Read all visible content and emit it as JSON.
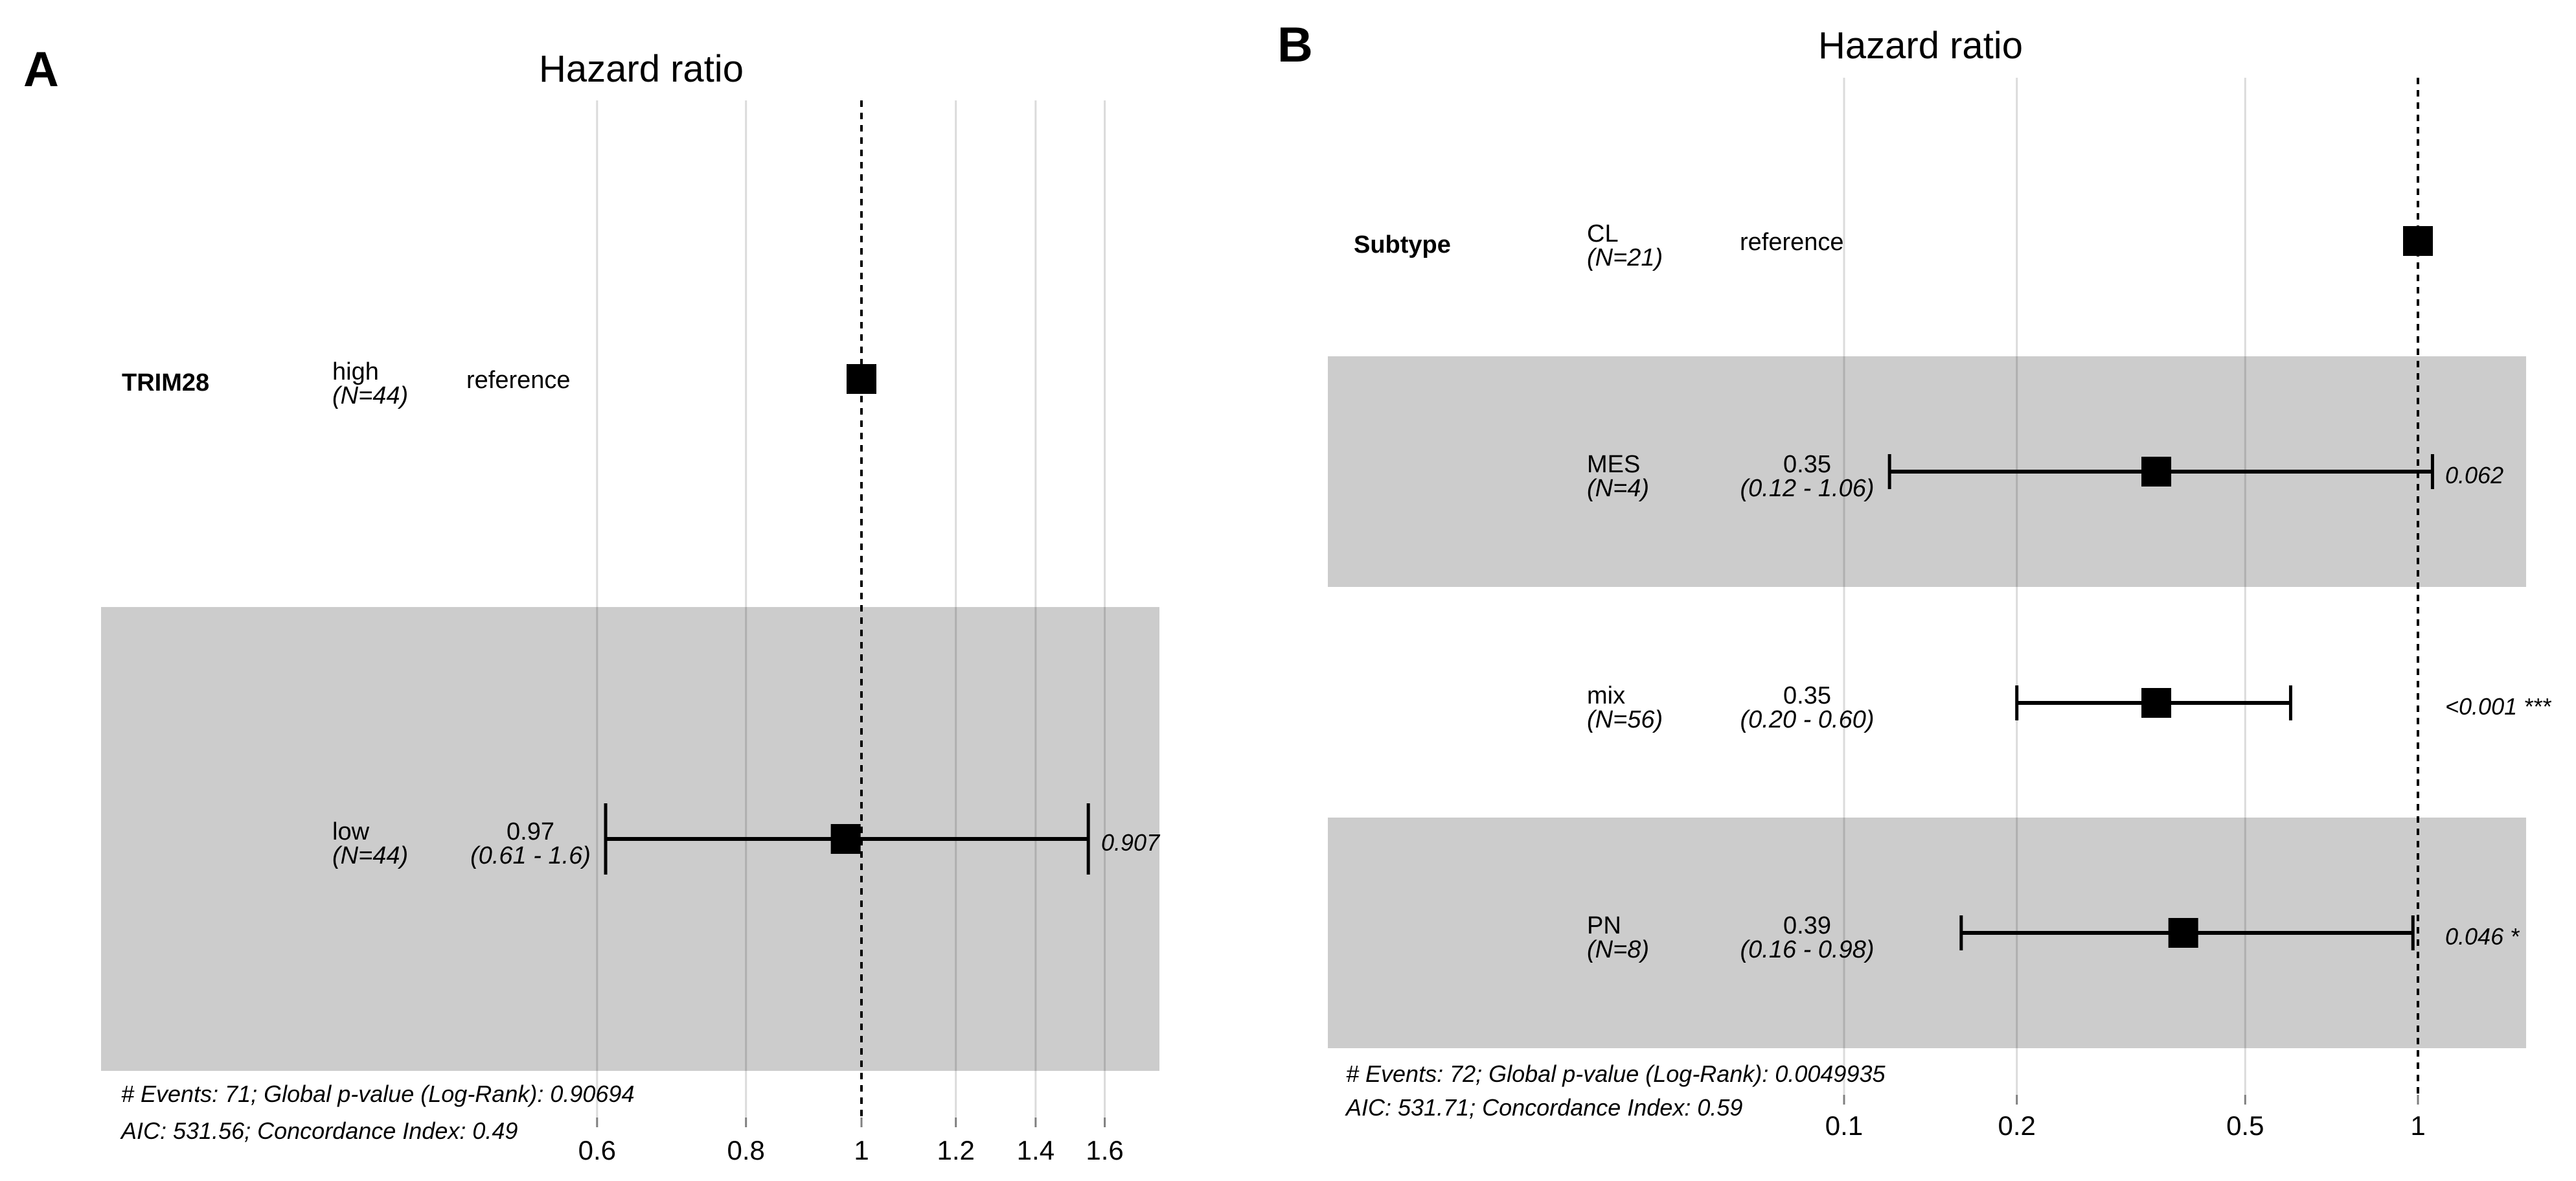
{
  "figure_name": "hazard-ratio-forest-plots",
  "colors": {
    "background": "#ffffff",
    "band": "#cccccc",
    "gridline": "rgba(0,0,0,0.14)",
    "reference_line": "#000000",
    "marker": "#000000",
    "errorbar": "#000000",
    "tick_mark": "#808080",
    "tick_label": "#4d4d4d",
    "title": "#1a1a1a",
    "text": "#000000"
  },
  "chart_data": [
    {
      "type": "forest",
      "panel_label": "A",
      "title": "Hazard ratio",
      "variable": "TRIM28",
      "x_scale": "log10",
      "xlim": [
        0.55,
        1.75
      ],
      "tick_labels": [
        "0.6",
        "0.8",
        "1",
        "1.2",
        "1.4",
        "1.6"
      ],
      "tick_values": [
        0.6,
        0.8,
        1,
        1.2,
        1.4,
        1.6
      ],
      "reference_value": 1,
      "grid": true,
      "rows": [
        {
          "level": "high",
          "n": "(N=44)",
          "estimate": "reference",
          "hr": 1,
          "reference": true,
          "shaded": false
        },
        {
          "level": "low",
          "n": "(N=44)",
          "estimate": "0.97",
          "ci_text": "(0.61 - 1.6)",
          "hr": 0.97,
          "ci": [
            0.61,
            1.55
          ],
          "p": "0.907",
          "shaded": true
        }
      ],
      "footer": [
        "# Events: 71; Global p-value (Log-Rank): 0.90694",
        "AIC: 531.56; Concordance Index: 0.49"
      ]
    },
    {
      "type": "forest",
      "panel_label": "B",
      "title": "Hazard ratio",
      "variable": "Subtype",
      "x_scale": "log10",
      "xlim": [
        0.08,
        1.3
      ],
      "tick_labels": [
        "0.1",
        "0.2",
        "0.5",
        "1"
      ],
      "tick_values": [
        0.1,
        0.2,
        0.5,
        1
      ],
      "reference_value": 1,
      "grid": true,
      "rows": [
        {
          "level": "CL",
          "n": "(N=21)",
          "estimate": "reference",
          "hr": 1,
          "reference": true,
          "shaded": false
        },
        {
          "level": "MES",
          "n": "(N=4)",
          "estimate": "0.35",
          "ci_text": "(0.12 - 1.06)",
          "hr": 0.35,
          "ci": [
            0.12,
            1.06
          ],
          "p": "0.062",
          "shaded": true
        },
        {
          "level": "mix",
          "n": "(N=56)",
          "estimate": "0.35",
          "ci_text": "(0.20 - 0.60)",
          "hr": 0.35,
          "ci": [
            0.2,
            0.6
          ],
          "p": "<0.001 ***",
          "shaded": false
        },
        {
          "level": "PN",
          "n": "(N=8)",
          "estimate": "0.39",
          "ci_text": "(0.16 - 0.98)",
          "hr": 0.39,
          "ci": [
            0.16,
            0.98
          ],
          "p": "0.046 *",
          "shaded": true
        }
      ],
      "footer": [
        "# Events: 72; Global p-value (Log-Rank): 0.0049935",
        "AIC: 531.71; Concordance Index: 0.59"
      ]
    }
  ]
}
